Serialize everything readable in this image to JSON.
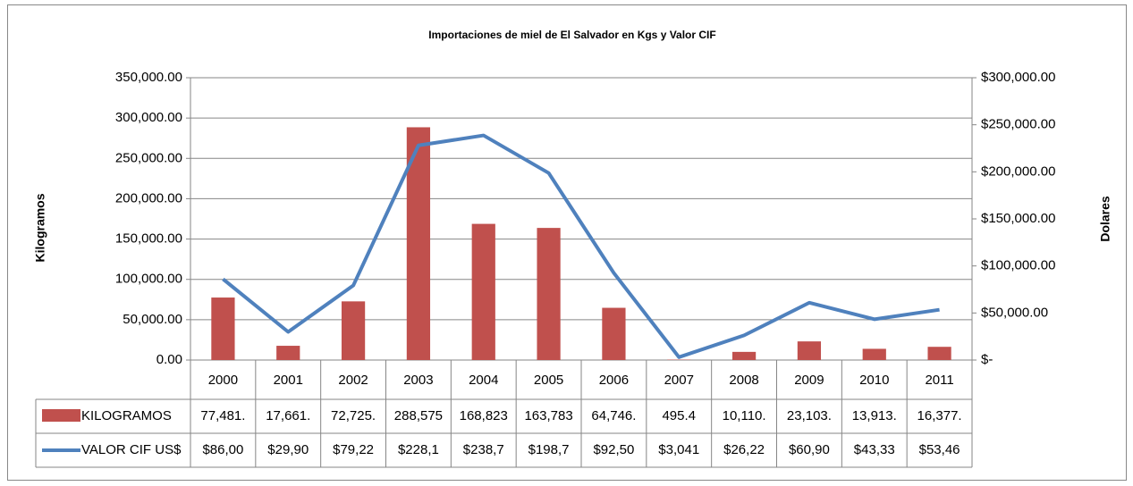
{
  "chart_data": {
    "type": "bar",
    "title": "Importaciones de miel  de El Salvador en Kgs y Valor CIF",
    "ylabel": "Kilogramos",
    "y2label": "Dolares",
    "categories": [
      "2000",
      "2001",
      "2002",
      "2003",
      "2004",
      "2005",
      "2006",
      "2007",
      "2008",
      "2009",
      "2010",
      "2011"
    ],
    "series": [
      {
        "name": "KILOGRAMOS",
        "color": "#c0504d",
        "type": "bar",
        "values": [
          77481,
          17661,
          72725,
          288575,
          168823,
          163783,
          64746,
          495.4,
          10110,
          23103,
          13913,
          16377
        ],
        "value_labels": [
          "77,481.",
          "17,661.",
          "72,725.",
          "288,575",
          "168,823",
          "163,783",
          "64,746.",
          "495.4",
          "10,110.",
          "23,103.",
          "13,913.",
          "16,377."
        ]
      },
      {
        "name": "VALOR CIF US$",
        "color": "#4f81bd",
        "type": "line",
        "axis": "y2",
        "values": [
          86000,
          29900,
          79220,
          228100,
          238700,
          198700,
          92500,
          3041,
          26220,
          60900,
          43330,
          53460
        ],
        "value_labels": [
          "$86,00",
          "$29,90",
          "$79,22",
          "$228,1",
          "$238,7",
          "$198,7",
          "$92,50",
          "$3,041",
          "$26,22",
          "$60,90",
          "$43,33",
          "$53,46"
        ]
      }
    ],
    "ylim": [
      0,
      350000
    ],
    "yticks": [
      {
        "value": 0,
        "label": "0.00"
      },
      {
        "value": 50000,
        "label": "50,000.00"
      },
      {
        "value": 100000,
        "label": "100,000.00"
      },
      {
        "value": 150000,
        "label": "150,000.00"
      },
      {
        "value": 200000,
        "label": "200,000.00"
      },
      {
        "value": 250000,
        "label": "250,000.00"
      },
      {
        "value": 300000,
        "label": "300,000.00"
      },
      {
        "value": 350000,
        "label": "350,000.00"
      }
    ],
    "y2lim": [
      0,
      300000
    ],
    "y2ticks": [
      {
        "value": 0,
        "label": "$-"
      },
      {
        "value": 50000,
        "label": "$50,000.00"
      },
      {
        "value": 100000,
        "label": "$100,000.00"
      },
      {
        "value": 150000,
        "label": "$150,000.00"
      },
      {
        "value": 200000,
        "label": "$200,000.00"
      },
      {
        "value": 250000,
        "label": "$250,000.00"
      },
      {
        "value": 300000,
        "label": "$300,000.00"
      }
    ],
    "grid": true,
    "data_table": true
  }
}
